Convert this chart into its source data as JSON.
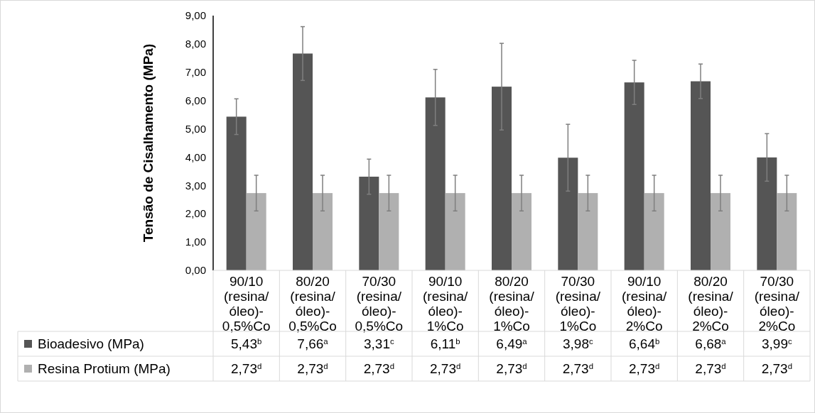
{
  "chart_data": {
    "type": "bar",
    "ylabel": "Tensão de Cisalhamento (MPa)",
    "categories": [
      "90/10 (resina/óleo)-0,5%Co",
      "80/20 (resina/óleo)-0,5%Co",
      "70/30 (resina/óleo)-0,5%Co",
      "90/10 (resina/óleo)-1%Co",
      "80/20 (resina/óleo)-1%Co",
      "70/30 (resina/óleo)-1%Co",
      "90/10 (resina/óleo)-2%Co",
      "80/20 (resina/óleo)-2%Co",
      "70/30 (resina/óleo)-2%Co"
    ],
    "series": [
      {
        "name": "Bioadesivo (MPa)",
        "color": "#555555",
        "values": [
          5.43,
          7.66,
          3.31,
          6.11,
          6.49,
          3.98,
          6.64,
          6.68,
          3.99
        ],
        "errors": [
          0.63,
          0.95,
          0.62,
          0.99,
          1.53,
          1.18,
          0.78,
          0.61,
          0.84
        ],
        "value_labels": [
          "5,43$^{b}$",
          "7,66$^{a}$",
          "3,31$^{c}$",
          "6,11$^{b}$",
          "6,49$^{a}$",
          "3,98$^{c}$",
          "6,64$^{b}$",
          "6,68$^{a}$",
          "3,99$^{c}$"
        ]
      },
      {
        "name": "Resina Protium (MPa)",
        "color": "#b0b0b0",
        "values": [
          2.73,
          2.73,
          2.73,
          2.73,
          2.73,
          2.73,
          2.73,
          2.73,
          2.73
        ],
        "errors": [
          0.63,
          0.63,
          0.63,
          0.63,
          0.63,
          0.63,
          0.63,
          0.63,
          0.63
        ],
        "value_labels": [
          "2,73$^{d}$",
          "2,73$^{d}$",
          "2,73$^{d}$",
          "2,73$^{d}$",
          "2,73$^{d}$",
          "2,73$^{d}$",
          "2,73$^{d}$",
          "2,73$^{d}$",
          "2,73$^{d}$"
        ]
      }
    ],
    "ylim": [
      0,
      9
    ],
    "yticks": [
      {
        "value": 0,
        "label": "0,00"
      },
      {
        "value": 1,
        "label": "1,00"
      },
      {
        "value": 2,
        "label": "2,00"
      },
      {
        "value": 3,
        "label": "3,00"
      },
      {
        "value": 4,
        "label": "4,00"
      },
      {
        "value": 5,
        "label": "5,00"
      },
      {
        "value": 6,
        "label": "6,00"
      },
      {
        "value": 7,
        "label": "7,00"
      },
      {
        "value": 8,
        "label": "8,00"
      },
      {
        "value": 9,
        "label": "9,00"
      }
    ],
    "grid": false,
    "legend": "bottom"
  }
}
